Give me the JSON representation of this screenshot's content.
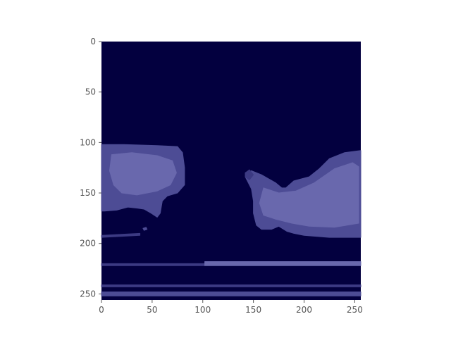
{
  "chart_data": {
    "type": "heatmap",
    "title": "",
    "xlabel": "",
    "ylabel": "",
    "image_size": [
      256,
      256
    ],
    "xlim": [
      0,
      256
    ],
    "ylim": [
      256,
      0
    ],
    "x_ticks": [
      0,
      50,
      100,
      150,
      200,
      250
    ],
    "y_ticks": [
      0,
      50,
      100,
      150,
      200,
      250
    ],
    "x_tick_labels": [
      "0",
      "50",
      "100",
      "150",
      "200",
      "250"
    ],
    "y_tick_labels": [
      "0",
      "50",
      "100",
      "150",
      "200",
      "250"
    ],
    "colormap": {
      "background": "#03003f",
      "low": "#3c3a83",
      "mid": "#4d4c95",
      "high": "#6968ad",
      "accent": "#8180c0"
    },
    "regions": [
      {
        "name": "left-blob",
        "level": "mid",
        "polygon": [
          [
            0,
            102
          ],
          [
            22,
            102
          ],
          [
            55,
            103
          ],
          [
            75,
            104
          ],
          [
            80,
            110
          ],
          [
            82,
            125
          ],
          [
            82,
            142
          ],
          [
            75,
            150
          ],
          [
            65,
            153
          ],
          [
            60,
            158
          ],
          [
            58,
            170
          ],
          [
            55,
            174
          ],
          [
            49,
            170
          ],
          [
            42,
            166
          ],
          [
            35,
            165
          ],
          [
            26,
            164
          ],
          [
            15,
            167
          ],
          [
            3,
            168
          ],
          [
            0,
            168
          ]
        ]
      },
      {
        "name": "left-blob-core",
        "level": "high",
        "polygon": [
          [
            10,
            112
          ],
          [
            30,
            110
          ],
          [
            55,
            113
          ],
          [
            70,
            118
          ],
          [
            74,
            130
          ],
          [
            68,
            142
          ],
          [
            55,
            148
          ],
          [
            35,
            152
          ],
          [
            20,
            150
          ],
          [
            12,
            142
          ],
          [
            8,
            128
          ]
        ]
      },
      {
        "name": "right-blob",
        "level": "mid",
        "polygon": [
          [
            142,
            130
          ],
          [
            148,
            128
          ],
          [
            158,
            132
          ],
          [
            172,
            140
          ],
          [
            178,
            145
          ],
          [
            182,
            145
          ],
          [
            190,
            138
          ],
          [
            205,
            134
          ],
          [
            215,
            126
          ],
          [
            225,
            116
          ],
          [
            240,
            110
          ],
          [
            256,
            108
          ],
          [
            256,
            194
          ],
          [
            225,
            194
          ],
          [
            200,
            192
          ],
          [
            190,
            190
          ],
          [
            183,
            188
          ],
          [
            175,
            183
          ],
          [
            168,
            186
          ],
          [
            158,
            186
          ],
          [
            153,
            182
          ],
          [
            150,
            170
          ],
          [
            150,
            158
          ],
          [
            148,
            146
          ],
          [
            145,
            140
          ],
          [
            142,
            134
          ]
        ]
      },
      {
        "name": "right-blob-core",
        "level": "high",
        "polygon": [
          [
            160,
            145
          ],
          [
            175,
            150
          ],
          [
            192,
            148
          ],
          [
            210,
            140
          ],
          [
            230,
            126
          ],
          [
            248,
            120
          ],
          [
            254,
            124
          ],
          [
            254,
            180
          ],
          [
            230,
            184
          ],
          [
            205,
            183
          ],
          [
            188,
            180
          ],
          [
            172,
            176
          ],
          [
            160,
            172
          ],
          [
            156,
            160
          ]
        ]
      },
      {
        "name": "right-blob-tip",
        "level": "low",
        "polygon": [
          [
            142,
            130
          ],
          [
            146,
            127
          ],
          [
            150,
            132
          ],
          [
            146,
            137
          ],
          [
            142,
            134
          ]
        ]
      },
      {
        "name": "left-streak",
        "level": "low",
        "polygon": [
          [
            0,
            192
          ],
          [
            38,
            190
          ],
          [
            38,
            192
          ],
          [
            0,
            194
          ]
        ]
      },
      {
        "name": "left-speck",
        "level": "mid",
        "polygon": [
          [
            41,
            185
          ],
          [
            44,
            184
          ],
          [
            45,
            186
          ],
          [
            42,
            187
          ]
        ]
      },
      {
        "name": "band-upper-left",
        "level": "low",
        "polygon": [
          [
            0,
            220
          ],
          [
            102,
            220
          ],
          [
            102,
            222
          ],
          [
            0,
            222
          ]
        ]
      },
      {
        "name": "band-upper-right",
        "level": "high",
        "polygon": [
          [
            102,
            218
          ],
          [
            256,
            218
          ],
          [
            256,
            222
          ],
          [
            102,
            222
          ]
        ]
      },
      {
        "name": "band-middle",
        "level": "low",
        "polygon": [
          [
            0,
            241
          ],
          [
            256,
            241
          ],
          [
            256,
            243
          ],
          [
            0,
            243
          ]
        ]
      },
      {
        "name": "band-lower",
        "level": "mid",
        "polygon": [
          [
            0,
            248
          ],
          [
            256,
            248
          ],
          [
            256,
            252
          ],
          [
            0,
            252
          ]
        ]
      }
    ]
  }
}
